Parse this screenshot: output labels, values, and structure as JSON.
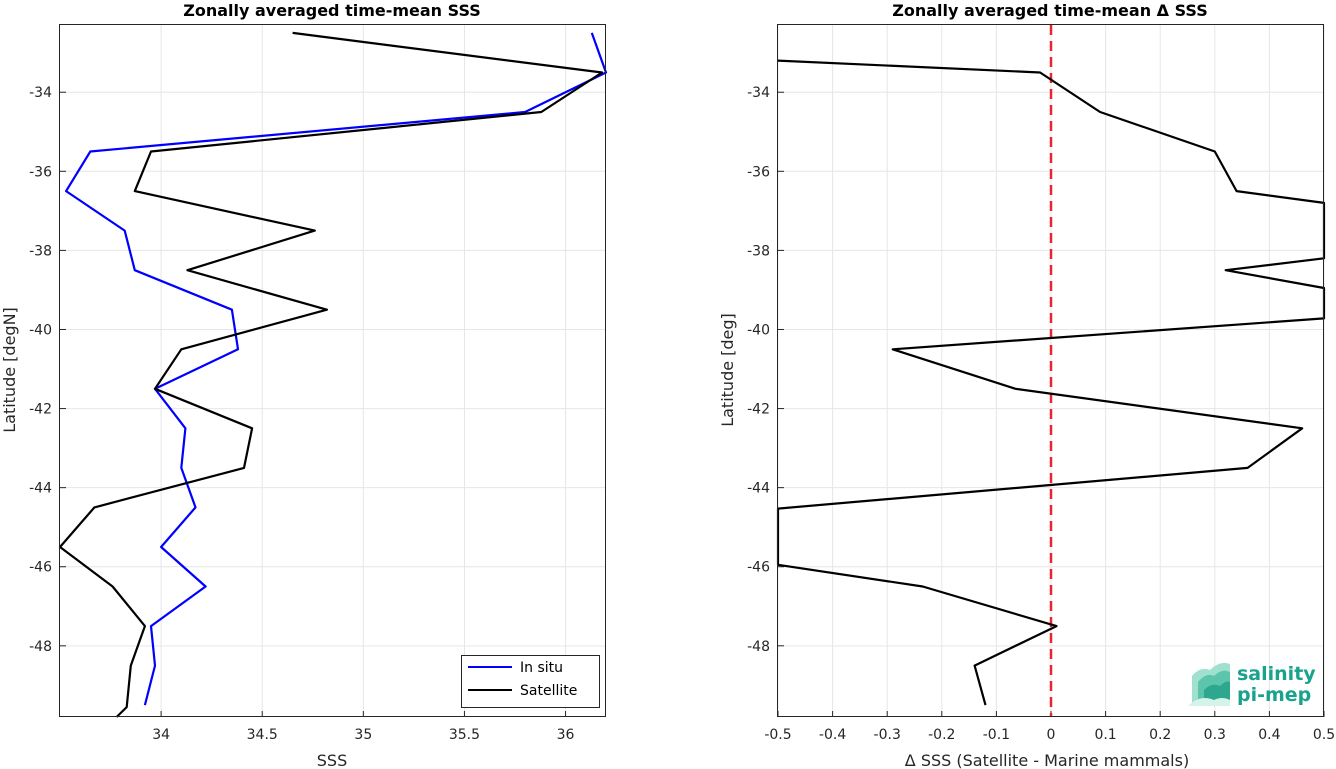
{
  "chart_data": [
    {
      "type": "line",
      "title": "Zonally averaged time-mean SSS",
      "xlabel": "SSS",
      "ylabel": "Latitude [degN]",
      "xlim": [
        33.5,
        36.2
      ],
      "ylim": [
        -49.8,
        -32.3
      ],
      "xticks": [
        34,
        34.5,
        35,
        35.5,
        36
      ],
      "xtick_labels": [
        "34",
        "34.5",
        "35",
        "35.5",
        "36"
      ],
      "yticks": [
        -48,
        -46,
        -44,
        -42,
        -40,
        -38,
        -36,
        -34
      ],
      "ytick_labels": [
        "-48",
        "-46",
        "-44",
        "-42",
        "-40",
        "-38",
        "-36",
        "-34"
      ],
      "grid": true,
      "legend_position": "bottom-right",
      "series": [
        {
          "name": "In situ",
          "color": "#0000ff",
          "points": [
            [
              36.13,
              -32.5
            ],
            [
              36.2,
              -33.5
            ],
            [
              35.8,
              -34.5
            ],
            [
              33.65,
              -35.5
            ],
            [
              33.53,
              -36.5
            ],
            [
              33.82,
              -37.5
            ],
            [
              33.87,
              -38.5
            ],
            [
              34.35,
              -39.5
            ],
            [
              34.38,
              -40.5
            ],
            [
              33.97,
              -41.5
            ],
            [
              34.12,
              -42.5
            ],
            [
              34.1,
              -43.5
            ],
            [
              34.17,
              -44.5
            ],
            [
              34.0,
              -45.5
            ],
            [
              34.22,
              -46.5
            ],
            [
              33.95,
              -47.5
            ],
            [
              33.97,
              -48.5
            ],
            [
              33.92,
              -49.5
            ]
          ]
        },
        {
          "name": "Satellite",
          "color": "#000000",
          "points": [
            [
              34.65,
              -32.5
            ],
            [
              36.18,
              -33.5
            ],
            [
              35.88,
              -34.5
            ],
            [
              33.95,
              -35.5
            ],
            [
              33.87,
              -36.5
            ],
            [
              34.76,
              -37.5
            ],
            [
              34.13,
              -38.5
            ],
            [
              34.82,
              -39.5
            ],
            [
              34.1,
              -40.5
            ],
            [
              33.97,
              -41.5
            ],
            [
              34.45,
              -42.5
            ],
            [
              34.41,
              -43.5
            ],
            [
              33.67,
              -44.5
            ],
            [
              33.5,
              -45.5
            ],
            [
              33.76,
              -46.5
            ],
            [
              33.92,
              -47.5
            ],
            [
              33.85,
              -48.5
            ],
            [
              33.83,
              -49.55
            ],
            [
              33.78,
              -49.8
            ]
          ]
        }
      ]
    },
    {
      "type": "line",
      "title": "Zonally averaged time-mean Δ SSS",
      "xlabel": "Δ SSS (Satellite - Marine mammals)",
      "ylabel": "Latitude [deg]",
      "xlim": [
        -0.5,
        0.5
      ],
      "ylim": [
        -49.8,
        -32.3
      ],
      "xticks": [
        -0.5,
        -0.4,
        -0.3,
        -0.2,
        -0.1,
        0,
        0.1,
        0.2,
        0.3,
        0.4,
        0.5
      ],
      "xtick_labels": [
        "-0.5",
        "-0.4",
        "-0.3",
        "-0.2",
        "-0.1",
        "0",
        "0.1",
        "0.2",
        "0.3",
        "0.4",
        "0.5"
      ],
      "yticks": [
        -48,
        -46,
        -44,
        -42,
        -40,
        -38,
        -36,
        -34
      ],
      "ytick_labels": [
        "-48",
        "-46",
        "-44",
        "-42",
        "-40",
        "-38",
        "-36",
        "-34"
      ],
      "grid": true,
      "reference_line": {
        "x": 0,
        "color": "#e8262b",
        "style": "dashed"
      },
      "series": [
        {
          "color": "#000000",
          "points": [
            [
              -0.5,
              -33.2
            ],
            [
              -0.02,
              -33.5
            ],
            [
              0.09,
              -34.5
            ],
            [
              0.3,
              -35.5
            ],
            [
              0.34,
              -36.5
            ],
            [
              0.5,
              -36.8
            ],
            [
              0.5,
              -38.2
            ],
            [
              0.32,
              -38.5
            ],
            [
              0.5,
              -38.95
            ],
            [
              0.5,
              -39.72
            ],
            [
              -0.29,
              -40.5
            ],
            [
              -0.065,
              -41.5
            ],
            [
              0.46,
              -42.5
            ],
            [
              0.36,
              -43.5
            ],
            [
              -0.5,
              -44.53
            ],
            [
              -0.5,
              -45.95
            ],
            [
              -0.235,
              -46.5
            ],
            [
              0.01,
              -47.5
            ],
            [
              -0.14,
              -48.5
            ],
            [
              -0.12,
              -49.5
            ]
          ]
        }
      ]
    }
  ],
  "logo": {
    "line1": "salinity",
    "line2": "pi-mep",
    "color": "#19a38e"
  }
}
